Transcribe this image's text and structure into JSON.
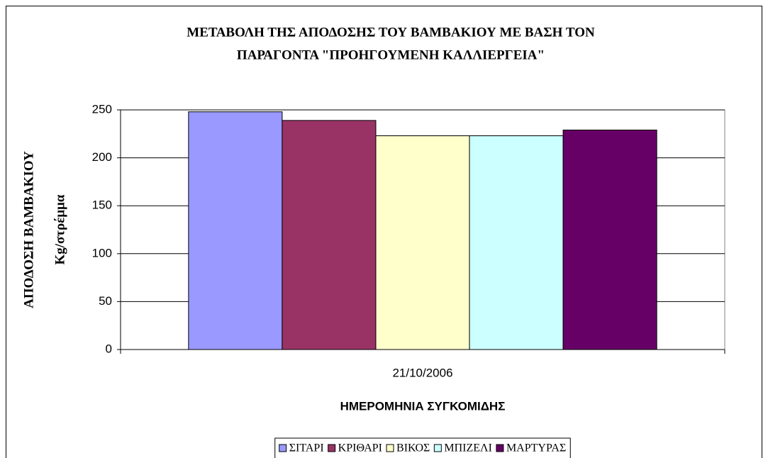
{
  "chart_data": {
    "type": "bar",
    "title": [
      "ΜΕΤΑΒΟΛΗ ΤΗΣ ΑΠΟΔΟΣΗΣ ΤΟΥ ΒΑΜΒΑΚΙΟΥ ΜΕ ΒΑΣΗ ΤΟΝ",
      "ΠΑΡΑΓΟΝΤΑ \"ΠΡΟΗΓΟΥΜΕΝΗ ΚΑΛΛΙΕΡΓΕΙΑ\""
    ],
    "y_label": [
      "ΑΠΟΔΟΣΗ ΒΑΜΒΑΚΙΟΥ",
      "Kg/στρέμμα"
    ],
    "x_label": "ΗΜΕΡΟΜΗΝΙΑ ΣΥΓΚΟΜΙΔΗΣ",
    "categories": [
      "21/10/2006"
    ],
    "series": [
      {
        "name": "ΣΙΤΑΡΙ",
        "color": "#9999ff",
        "values": [
          248
        ]
      },
      {
        "name": "ΚΡΙΘΑΡΙ",
        "color": "#993366",
        "values": [
          239
        ]
      },
      {
        "name": "ΒΙΚΟΣ",
        "color": "#ffffcc",
        "values": [
          223
        ]
      },
      {
        "name": "ΜΠΙΖΕΛΙ",
        "color": "#ccffff",
        "values": [
          223
        ]
      },
      {
        "name": "ΜΑΡΤΥΡΑΣ",
        "color": "#660066",
        "values": [
          229
        ]
      }
    ],
    "ylim": [
      0,
      250
    ],
    "yticks": [
      0,
      50,
      100,
      150,
      200,
      250
    ],
    "grid": true,
    "legend": "bottom"
  }
}
